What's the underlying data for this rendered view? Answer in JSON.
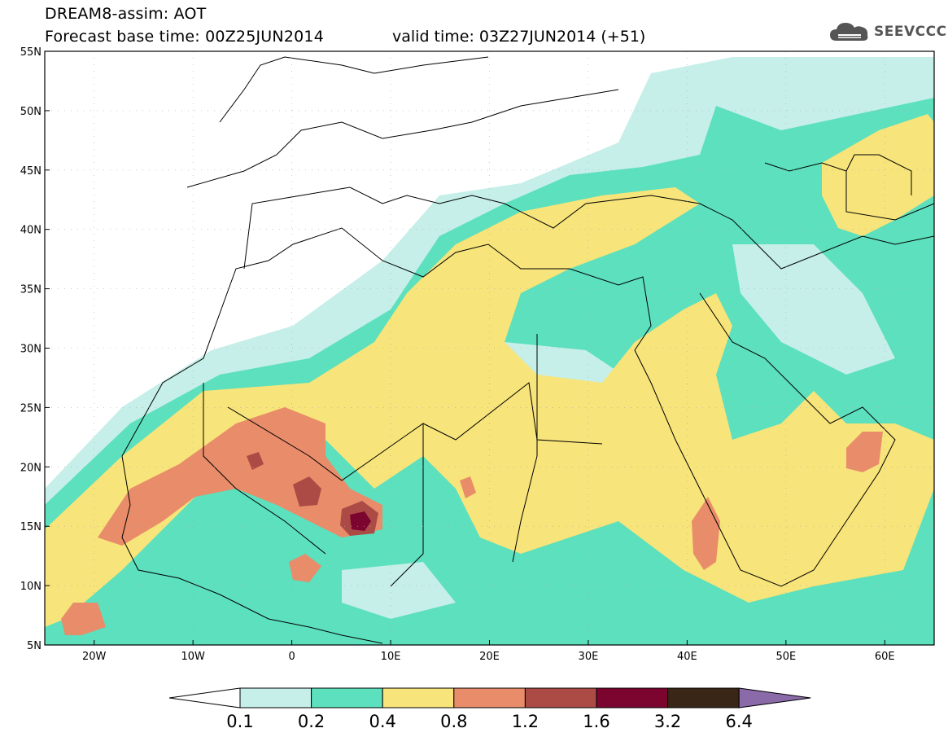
{
  "header": {
    "line1": "DREAM8-assim: AOT",
    "line2": "Forecast base time: 00Z25JUN2014",
    "valid": "valid time: 03Z27JUN2014 (+51)"
  },
  "logo": {
    "text": "SEEVCCC",
    "icon": "cloud-icon",
    "color": "#555555"
  },
  "map": {
    "lon_range": [
      -25,
      65
    ],
    "lat_range": [
      5,
      55
    ],
    "lon_ticks": [
      "20W",
      "10W",
      "0",
      "10E",
      "20E",
      "30E",
      "40E",
      "50E",
      "60E"
    ],
    "lat_ticks": [
      "5N",
      "10N",
      "15N",
      "20N",
      "25N",
      "30N",
      "35N",
      "40N",
      "45N",
      "50N",
      "55N"
    ]
  },
  "legend": {
    "labels": [
      "0.1",
      "0.2",
      "0.4",
      "0.8",
      "1.2",
      "1.6",
      "3.2",
      "6.4"
    ],
    "colors": [
      "#c5efe8",
      "#5ce0bd",
      "#f7e47a",
      "#e98c6a",
      "#ac4b45",
      "#7c0530",
      "#3a2617",
      "#8a6aa8"
    ],
    "low_end_color": "#ffffff"
  }
}
